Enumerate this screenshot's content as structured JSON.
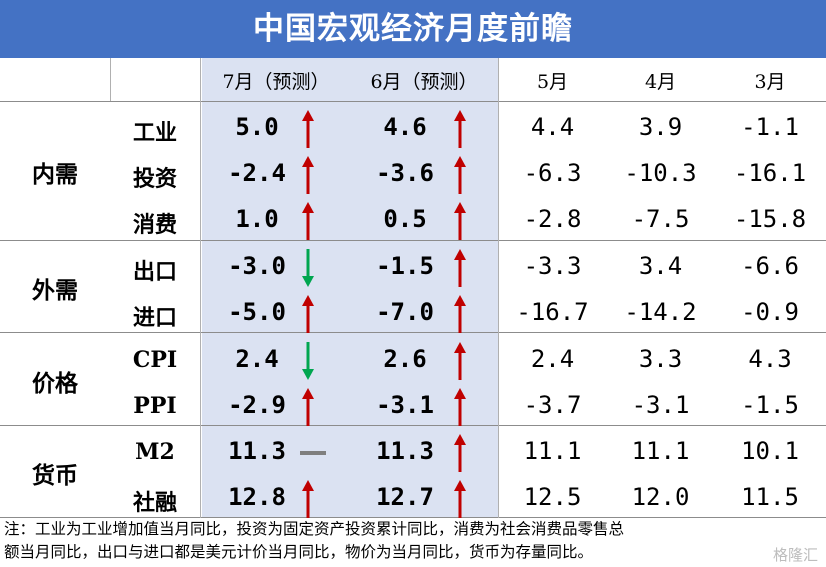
{
  "title": "中国宏观经济月度前瞻",
  "columns": [
    "7月（预测）",
    "6月（预测）",
    "5月",
    "4月",
    "3月"
  ],
  "groups": [
    "内需",
    "外需",
    "价格",
    "货币"
  ],
  "rows": [
    {
      "label": "工业",
      "values": [
        "5.0",
        "4.6",
        "4.4",
        "3.9",
        "-1.1"
      ],
      "trend": [
        "up",
        "up"
      ]
    },
    {
      "label": "投资",
      "values": [
        "-2.4",
        "-3.6",
        "-6.3",
        "-10.3",
        "-16.1"
      ],
      "trend": [
        "up",
        "up"
      ]
    },
    {
      "label": "消费",
      "values": [
        "1.0",
        "0.5",
        "-2.8",
        "-7.5",
        "-15.8"
      ],
      "trend": [
        "up",
        "up"
      ]
    },
    {
      "label": "出口",
      "values": [
        "-3.0",
        "-1.5",
        "-3.3",
        "3.4",
        "-6.6"
      ],
      "trend": [
        "down",
        "up"
      ]
    },
    {
      "label": "进口",
      "values": [
        "-5.0",
        "-7.0",
        "-16.7",
        "-14.2",
        "-0.9"
      ],
      "trend": [
        "up",
        "up"
      ]
    },
    {
      "label": "CPI",
      "values": [
        "2.4",
        "2.6",
        "2.4",
        "3.3",
        "4.3"
      ],
      "trend": [
        "down",
        "up"
      ]
    },
    {
      "label": "PPI",
      "values": [
        "-2.9",
        "-3.1",
        "-3.7",
        "-3.1",
        "-1.5"
      ],
      "trend": [
        "up",
        "up"
      ]
    },
    {
      "label": "M2",
      "values": [
        "11.3",
        "11.3",
        "11.1",
        "11.1",
        "10.1"
      ],
      "trend": [
        "flat",
        "up"
      ]
    },
    {
      "label": "社融",
      "values": [
        "12.8",
        "12.7",
        "12.5",
        "12.0",
        "11.5"
      ],
      "trend": [
        "up",
        "up"
      ]
    }
  ],
  "footnote": {
    "line1": "注：工业为工业增加值当月同比，投资为固定资产投资累计同比，消费为社会消费品零售总",
    "line2": "额当月同比，出口与进口都是美元计价当月同比，物价为当月同比，货币为存量同比。"
  },
  "watermark": "格隆汇",
  "colors": {
    "header": "#4472c4",
    "highlight": "#dbe2f2",
    "up": "#c00000",
    "down": "#00a650",
    "flat": "#7f7f7f"
  }
}
